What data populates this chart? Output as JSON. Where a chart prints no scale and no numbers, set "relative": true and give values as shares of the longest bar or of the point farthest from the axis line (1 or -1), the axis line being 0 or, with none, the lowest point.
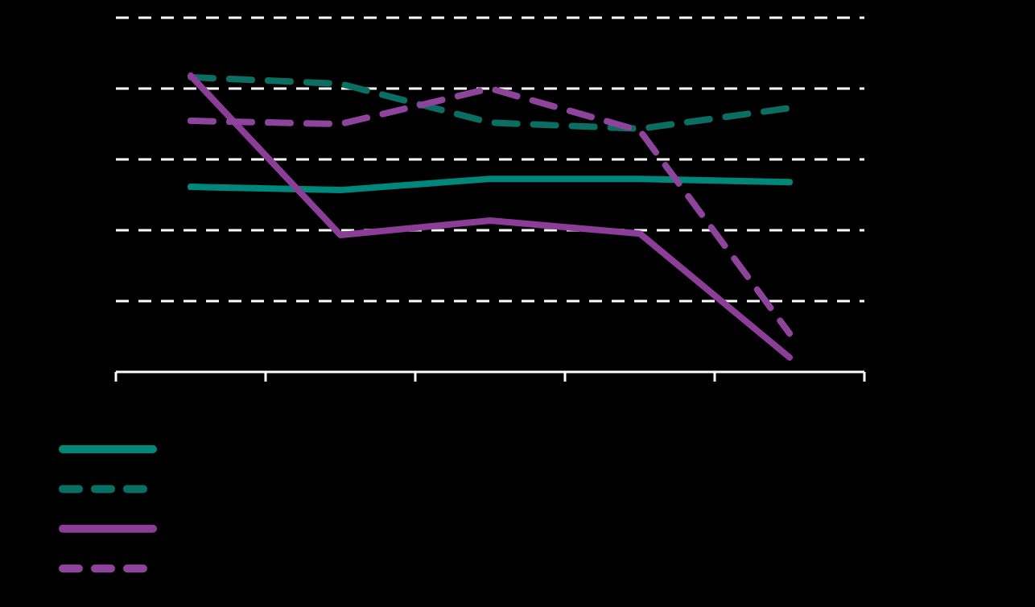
{
  "chart_data": {
    "type": "line",
    "relative": true,
    "categories": [
      null,
      null,
      null,
      null,
      null
    ],
    "grid": "y",
    "marker": "none",
    "series": [
      {
        "color": "#00877c",
        "line_style": "solid",
        "values": [
          0.625,
          0.614,
          0.652,
          0.652,
          0.641
        ]
      },
      {
        "color": "#0a6e63",
        "line_style": "dashed",
        "values": [
          0.995,
          0.973,
          0.842,
          0.821,
          0.891
        ]
      },
      {
        "color": "#8b3d98",
        "line_style": "solid",
        "values": [
          1.0,
          0.462,
          0.511,
          0.467,
          0.049
        ]
      },
      {
        "color": "#8e449c",
        "line_style": "dashed",
        "values": [
          0.848,
          0.837,
          0.957,
          0.815,
          0.13
        ]
      }
    ]
  }
}
